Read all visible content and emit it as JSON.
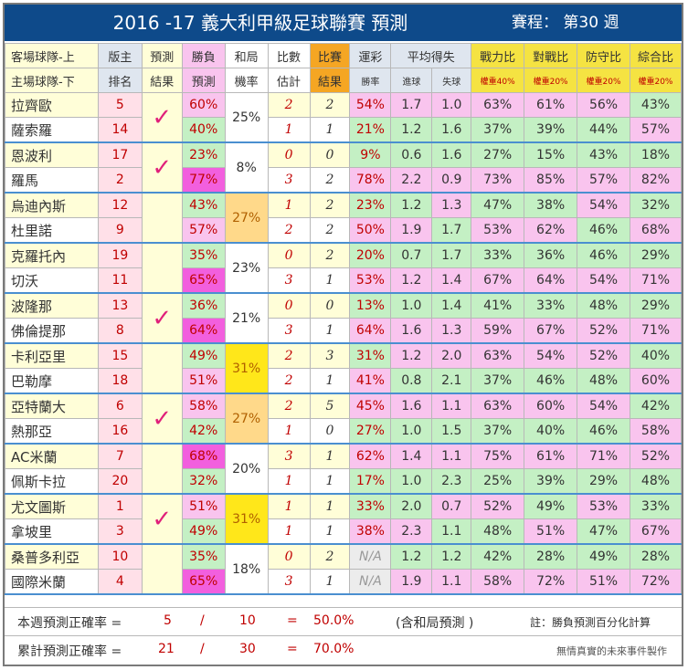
{
  "title": {
    "main": "2016 -17  義大利甲級足球聯賽  預測",
    "schedule": "賽程：  第30 週"
  },
  "headers": {
    "teams_top": "客場球隊-上",
    "teams_bottom": "主場球隊-下",
    "rank_top": "版主",
    "rank_bottom": "排名",
    "pred_top": "預測",
    "pred_bottom": "結果",
    "wl_top": "勝負",
    "wl_bottom": "預測",
    "draw_top": "和局",
    "draw_bottom": "機率",
    "score_top": "比數",
    "score_bottom": "估計",
    "result_top": "比賽",
    "result_bottom": "結果",
    "lottery_top": "運彩",
    "lottery_bottom": "勝率",
    "avg_top": "平均得失",
    "avg_for": "進球",
    "avg_against": "失球",
    "power": "戰力比",
    "power_w": "權重40%",
    "h2h": "對戰比",
    "h2h_w": "權重20%",
    "defense": "防守比",
    "defense_w": "權重20%",
    "overall": "綜合比",
    "overall_w": "權重20%"
  },
  "check_mark": "✓",
  "matches": [
    {
      "draw": "25%",
      "draw_hl": false,
      "check": true,
      "teams": [
        {
          "name": "拉齊歐",
          "rank": "5",
          "wl": "60%",
          "score": "2",
          "result": "2",
          "lottery": "54%",
          "gf": "1.7",
          "ga": "1.0",
          "power": "63%",
          "h2h": "61%",
          "def": "56%",
          "overall": "43%"
        },
        {
          "name": "薩索羅",
          "rank": "14",
          "wl": "40%",
          "score": "1",
          "result": "1",
          "lottery": "21%",
          "gf": "1.2",
          "ga": "1.6",
          "power": "37%",
          "h2h": "39%",
          "def": "44%",
          "overall": "57%"
        }
      ]
    },
    {
      "draw": "8%",
      "draw_hl": false,
      "check": true,
      "teams": [
        {
          "name": "恩波利",
          "rank": "17",
          "wl": "23%",
          "score": "0",
          "result": "0",
          "lottery": "9%",
          "gf": "0.6",
          "ga": "1.6",
          "power": "27%",
          "h2h": "15%",
          "def": "43%",
          "overall": "18%"
        },
        {
          "name": "羅馬",
          "rank": "2",
          "wl": "77%",
          "score": "3",
          "result": "2",
          "lottery": "78%",
          "gf": "2.2",
          "ga": "0.9",
          "power": "73%",
          "h2h": "85%",
          "def": "57%",
          "overall": "82%"
        }
      ]
    },
    {
      "draw": "27%",
      "draw_hl": true,
      "check": false,
      "teams": [
        {
          "name": "烏迪內斯",
          "rank": "12",
          "wl": "43%",
          "score": "1",
          "result": "2",
          "lottery": "23%",
          "gf": "1.2",
          "ga": "1.3",
          "power": "47%",
          "h2h": "38%",
          "def": "54%",
          "overall": "32%"
        },
        {
          "name": "杜里諾",
          "rank": "9",
          "wl": "57%",
          "score": "2",
          "result": "2",
          "lottery": "50%",
          "gf": "1.9",
          "ga": "1.7",
          "power": "53%",
          "h2h": "62%",
          "def": "46%",
          "overall": "68%"
        }
      ]
    },
    {
      "draw": "23%",
      "draw_hl": false,
      "check": false,
      "teams": [
        {
          "name": "克羅托內",
          "rank": "19",
          "wl": "35%",
          "score": "0",
          "result": "2",
          "lottery": "20%",
          "gf": "0.7",
          "ga": "1.7",
          "power": "33%",
          "h2h": "36%",
          "def": "46%",
          "overall": "29%"
        },
        {
          "name": "切沃",
          "rank": "11",
          "wl": "65%",
          "score": "3",
          "result": "1",
          "lottery": "53%",
          "gf": "1.2",
          "ga": "1.4",
          "power": "67%",
          "h2h": "64%",
          "def": "54%",
          "overall": "71%"
        }
      ]
    },
    {
      "draw": "21%",
      "draw_hl": false,
      "check": true,
      "teams": [
        {
          "name": "波隆那",
          "rank": "13",
          "wl": "36%",
          "score": "0",
          "result": "0",
          "lottery": "13%",
          "gf": "1.0",
          "ga": "1.4",
          "power": "41%",
          "h2h": "33%",
          "def": "48%",
          "overall": "29%"
        },
        {
          "name": "佛倫提那",
          "rank": "8",
          "wl": "64%",
          "score": "3",
          "result": "1",
          "lottery": "64%",
          "gf": "1.6",
          "ga": "1.3",
          "power": "59%",
          "h2h": "67%",
          "def": "52%",
          "overall": "71%"
        }
      ]
    },
    {
      "draw": "31%",
      "draw_hl": true,
      "check": false,
      "teams": [
        {
          "name": "卡利亞里",
          "rank": "15",
          "wl": "49%",
          "score": "2",
          "result": "3",
          "lottery": "31%",
          "gf": "1.2",
          "ga": "2.0",
          "power": "63%",
          "h2h": "54%",
          "def": "52%",
          "overall": "40%"
        },
        {
          "name": "巴勒摩",
          "rank": "18",
          "wl": "51%",
          "score": "2",
          "result": "1",
          "lottery": "41%",
          "gf": "0.8",
          "ga": "2.1",
          "power": "37%",
          "h2h": "46%",
          "def": "48%",
          "overall": "60%"
        }
      ]
    },
    {
      "draw": "27%",
      "draw_hl": true,
      "check": true,
      "teams": [
        {
          "name": "亞特蘭大",
          "rank": "6",
          "wl": "58%",
          "score": "2",
          "result": "5",
          "lottery": "45%",
          "gf": "1.6",
          "ga": "1.1",
          "power": "63%",
          "h2h": "60%",
          "def": "54%",
          "overall": "42%"
        },
        {
          "name": "熱那亞",
          "rank": "16",
          "wl": "42%",
          "score": "1",
          "result": "0",
          "lottery": "27%",
          "gf": "1.0",
          "ga": "1.5",
          "power": "37%",
          "h2h": "40%",
          "def": "46%",
          "overall": "58%"
        }
      ]
    },
    {
      "draw": "20%",
      "draw_hl": false,
      "check": false,
      "teams": [
        {
          "name": "AC米蘭",
          "rank": "7",
          "wl": "68%",
          "score": "3",
          "result": "1",
          "lottery": "62%",
          "gf": "1.4",
          "ga": "1.1",
          "power": "75%",
          "h2h": "61%",
          "def": "71%",
          "overall": "52%"
        },
        {
          "name": "佩斯卡拉",
          "rank": "20",
          "wl": "32%",
          "score": "1",
          "result": "1",
          "lottery": "17%",
          "gf": "1.0",
          "ga": "2.3",
          "power": "25%",
          "h2h": "39%",
          "def": "29%",
          "overall": "48%"
        }
      ]
    },
    {
      "draw": "31%",
      "draw_hl": true,
      "check": true,
      "teams": [
        {
          "name": "尤文圖斯",
          "rank": "1",
          "wl": "51%",
          "score": "1",
          "result": "1",
          "lottery": "33%",
          "gf": "2.0",
          "ga": "0.7",
          "power": "52%",
          "h2h": "49%",
          "def": "53%",
          "overall": "33%"
        },
        {
          "name": "拿坡里",
          "rank": "3",
          "wl": "49%",
          "score": "1",
          "result": "1",
          "lottery": "38%",
          "gf": "2.3",
          "ga": "1.1",
          "power": "48%",
          "h2h": "51%",
          "def": "47%",
          "overall": "67%"
        }
      ]
    },
    {
      "draw": "18%",
      "draw_hl": false,
      "check": false,
      "teams": [
        {
          "name": "桑普多利亞",
          "rank": "10",
          "wl": "35%",
          "score": "0",
          "result": "2",
          "lottery": "N/A",
          "gf": "1.2",
          "ga": "1.2",
          "power": "42%",
          "h2h": "28%",
          "def": "49%",
          "overall": "28%"
        },
        {
          "name": "國際米蘭",
          "rank": "4",
          "wl": "65%",
          "score": "3",
          "result": "1",
          "lottery": "N/A",
          "gf": "1.9",
          "ga": "1.1",
          "power": "58%",
          "h2h": "72%",
          "def": "51%",
          "overall": "72%"
        }
      ]
    }
  ],
  "footer": {
    "week_label": "本週預測正確率 =",
    "week_correct": "5",
    "week_slash": "/",
    "week_total": "10",
    "week_eq": "=",
    "week_pct": "50.0%",
    "week_note": "(含和局預測 )",
    "note_right": "註：勝負預測百分化計算",
    "cum_label": "累計預測正確率 =",
    "cum_correct": "21",
    "cum_slash": "/",
    "cum_total": "30",
    "cum_eq": "=",
    "cum_pct": "70.0%",
    "credit": "無情真實的未來事件製作"
  },
  "colors": {
    "title_bg": "#0e4a8a",
    "orange_header": "#f5a623",
    "yellow_header": "#f5e342",
    "away_row": "#fffed8",
    "pink_cell": "#f9c4ee",
    "green_cell": "#c4f0c4",
    "highlight_pink": "#f25fde",
    "draw_yellow": "#ffe71a",
    "draw_orange": "#ffd98a"
  }
}
